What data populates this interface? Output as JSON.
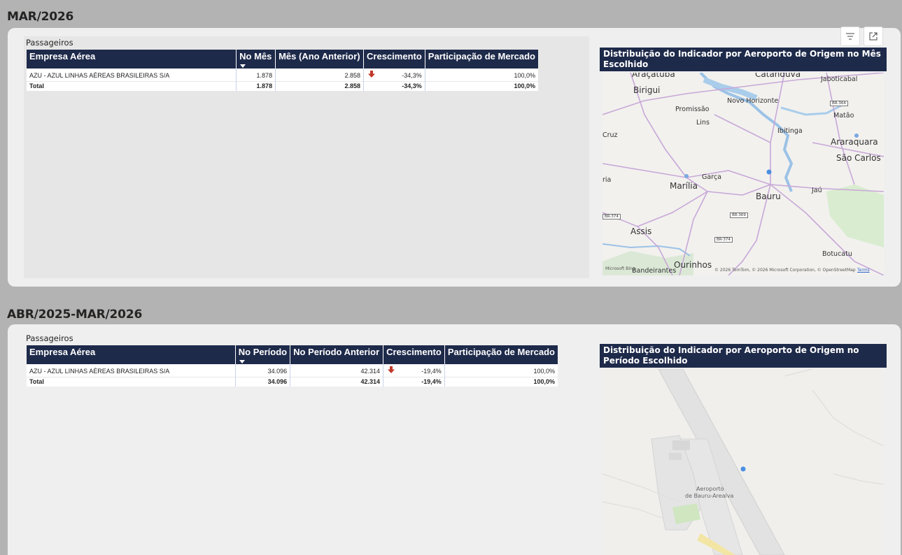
{
  "sections": [
    {
      "period_title": "MAR/2026",
      "table_title": "Passageiros",
      "headers": [
        "Empresa Aérea",
        "No Mês",
        "Mês (Ano Anterior)",
        "Crescimento",
        "Participação de Mercado"
      ],
      "rows": [
        {
          "empresa": "AZU - AZUL LINHAS AÉREAS BRASILEIRAS S/A",
          "atual": "1.878",
          "anterior": "2.858",
          "crescimento": "-34,3%",
          "participacao": "100,0%"
        }
      ],
      "total": {
        "label": "Total",
        "atual": "1.878",
        "anterior": "2.858",
        "crescimento": "-34,3%",
        "participacao": "100,0%"
      },
      "map_title": "Distribuição do Indicador por Aeroporto de Origem no Mês Escolhido"
    },
    {
      "period_title": "ABR/2025-MAR/2026",
      "table_title": "Passageiros",
      "headers": [
        "Empresa Aérea",
        "No Período",
        "No Período Anterior",
        "Crescimento",
        "Participação de Mercado"
      ],
      "rows": [
        {
          "empresa": "AZU - AZUL LINHAS AÉREAS BRASILEIRAS S/A",
          "atual": "34.096",
          "anterior": "42.314",
          "crescimento": "-19,4%",
          "participacao": "100,0%"
        }
      ],
      "total": {
        "label": "Total",
        "atual": "34.096",
        "anterior": "42.314",
        "crescimento": "-19,4%",
        "participacao": "100,0%"
      },
      "map_title": "Distribuição do Indicador por Aeroporto de Origem no Período Escolhido"
    }
  ],
  "map1": {
    "cities": [
      "Araçatuba",
      "Birigui",
      "Catanduva",
      "Jaboticabal",
      "Promissão",
      "Novo Horizonte",
      "Lins",
      "Matão",
      "Ibitinga",
      "Araraquara",
      "Cruz",
      "São Carlos",
      "Garça",
      "Marília",
      "Bauru",
      "Jaú",
      "Assis",
      "Botucatu",
      "Ourinhos",
      "Bandeirantes",
      "ria"
    ],
    "shields": [
      "BR-364",
      "BR-374",
      "BR-369",
      "BR-374"
    ],
    "copyright": "© 2026 TomTom, © 2026 Microsoft Corporation, © OpenStreetMap",
    "terms": "Terms",
    "brand": "Microsoft Bing"
  },
  "map2": {
    "airport_label_line1": "Aeroporto",
    "airport_label_line2": "de Bauru-Arealva"
  },
  "icons": {
    "filter": "filter-icon",
    "focus": "focus-mode-icon",
    "down_arrow": "red-down-arrow-icon"
  },
  "colors": {
    "header_bg": "#1e2a4a",
    "arrow_red": "#c0392b",
    "point_blue": "#4a8fe0"
  }
}
